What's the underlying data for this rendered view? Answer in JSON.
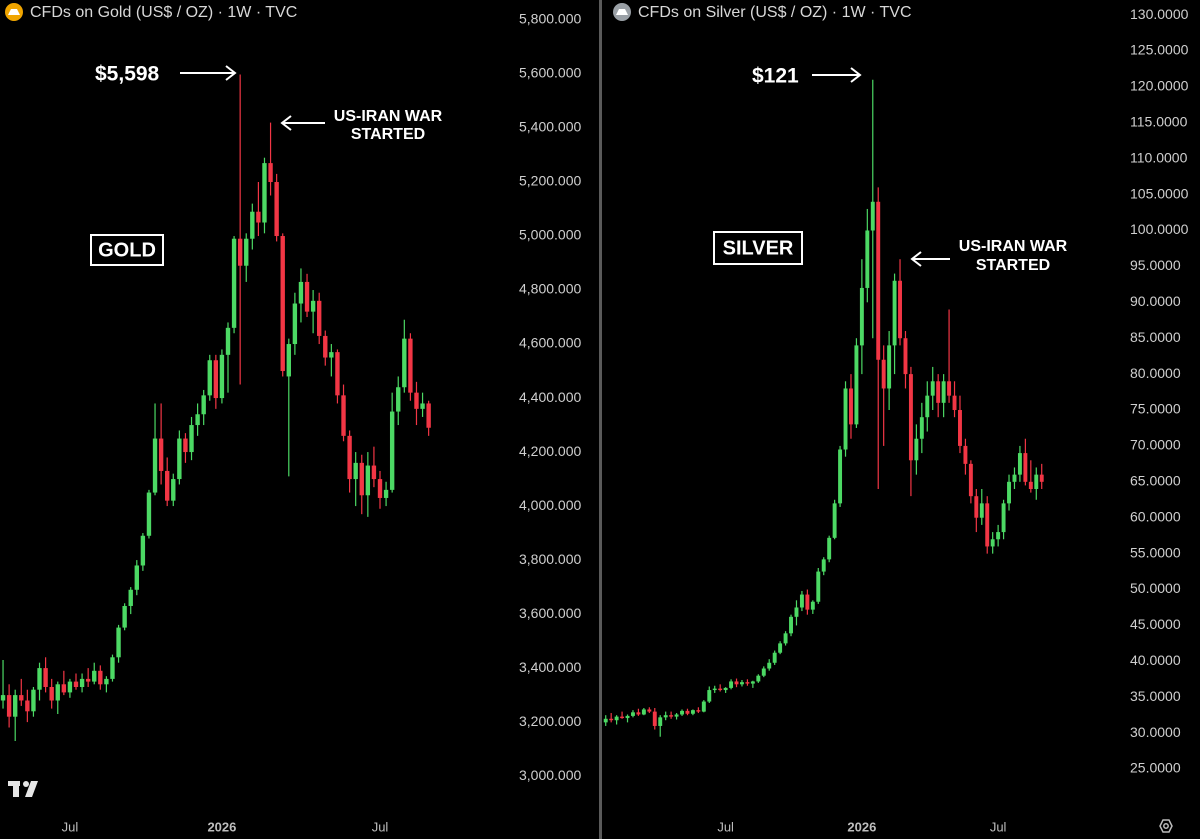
{
  "chart_data": [
    {
      "type": "candlestick",
      "title": "CFDs on Gold (US$ / OZ) · 1W · TVC",
      "label": "GOLD",
      "annotations": [
        {
          "text": "$5,598"
        },
        {
          "lines": [
            "US-IRAN WAR",
            "STARTED"
          ]
        }
      ],
      "up_color": "#4cd964",
      "down_color": "#f23645",
      "ylim": [
        2856,
        5874
      ],
      "yticks": [
        {
          "value": 3000,
          "label": "3,000.000"
        },
        {
          "value": 3200,
          "label": "3,200.000"
        },
        {
          "value": 3400,
          "label": "3,400.000"
        },
        {
          "value": 3600,
          "label": "3,600.000"
        },
        {
          "value": 3800,
          "label": "3,800.000"
        },
        {
          "value": 4000,
          "label": "4,000.000"
        },
        {
          "value": 4200,
          "label": "4,200.000"
        },
        {
          "value": 4400,
          "label": "4,400.000"
        },
        {
          "value": 4600,
          "label": "4,600.000"
        },
        {
          "value": 4800,
          "label": "4,800.000"
        },
        {
          "value": 5000,
          "label": "5,000.000"
        },
        {
          "value": 5200,
          "label": "5,200.000"
        },
        {
          "value": 5400,
          "label": "5,400.000"
        },
        {
          "value": 5600,
          "label": "5,600.000"
        },
        {
          "value": 5800,
          "label": "5,800.000"
        }
      ],
      "categories": [
        null,
        null,
        null,
        null,
        null,
        null,
        null,
        null,
        null,
        null,
        null,
        "Jul",
        null,
        null,
        null,
        null,
        null,
        null,
        null,
        null,
        null,
        null,
        null,
        null,
        null,
        null,
        null,
        null,
        null,
        null,
        null,
        null,
        null,
        null,
        null,
        null,
        "2026",
        null,
        null,
        null,
        null,
        null,
        null,
        null,
        null,
        null,
        null,
        null,
        null,
        null,
        null,
        null,
        null,
        null,
        null,
        null,
        null,
        null,
        null,
        null,
        null,
        null,
        "Jul",
        null,
        null,
        null,
        null,
        null,
        null,
        null,
        null
      ],
      "candles": [
        [
          3280,
          3430,
          3250,
          3300
        ],
        [
          3300,
          3340,
          3180,
          3220
        ],
        [
          3220,
          3320,
          3130,
          3300
        ],
        [
          3300,
          3360,
          3260,
          3280
        ],
        [
          3280,
          3320,
          3200,
          3240
        ],
        [
          3240,
          3330,
          3220,
          3320
        ],
        [
          3320,
          3420,
          3280,
          3400
        ],
        [
          3400,
          3440,
          3310,
          3330
        ],
        [
          3330,
          3360,
          3250,
          3280
        ],
        [
          3280,
          3350,
          3230,
          3340
        ],
        [
          3340,
          3390,
          3300,
          3310
        ],
        [
          3310,
          3360,
          3290,
          3350
        ],
        [
          3350,
          3380,
          3320,
          3330
        ],
        [
          3330,
          3380,
          3310,
          3360
        ],
        [
          3360,
          3400,
          3330,
          3350
        ],
        [
          3350,
          3420,
          3340,
          3390
        ],
        [
          3390,
          3410,
          3320,
          3340
        ],
        [
          3340,
          3370,
          3310,
          3360
        ],
        [
          3360,
          3450,
          3350,
          3440
        ],
        [
          3440,
          3560,
          3420,
          3550
        ],
        [
          3550,
          3640,
          3540,
          3630
        ],
        [
          3630,
          3700,
          3600,
          3690
        ],
        [
          3690,
          3800,
          3670,
          3780
        ],
        [
          3780,
          3900,
          3760,
          3890
        ],
        [
          3890,
          4060,
          3880,
          4050
        ],
        [
          4050,
          4380,
          4040,
          4250
        ],
        [
          4250,
          4380,
          4080,
          4130
        ],
        [
          4130,
          4180,
          4000,
          4020
        ],
        [
          4020,
          4120,
          4000,
          4100
        ],
        [
          4100,
          4280,
          4080,
          4250
        ],
        [
          4250,
          4270,
          4160,
          4200
        ],
        [
          4200,
          4330,
          4170,
          4300
        ],
        [
          4300,
          4380,
          4260,
          4340
        ],
        [
          4340,
          4430,
          4300,
          4410
        ],
        [
          4410,
          4560,
          4390,
          4540
        ],
        [
          4540,
          4560,
          4360,
          4400
        ],
        [
          4400,
          4580,
          4380,
          4560
        ],
        [
          4560,
          4680,
          4420,
          4660
        ],
        [
          4660,
          5000,
          4640,
          4990
        ],
        [
          4990,
          5598,
          4450,
          4890
        ],
        [
          4890,
          5010,
          4830,
          4990
        ],
        [
          4990,
          5120,
          4950,
          5090
        ],
        [
          5090,
          5200,
          5000,
          5050
        ],
        [
          5050,
          5290,
          5010,
          5270
        ],
        [
          5270,
          5420,
          5150,
          5200
        ],
        [
          5200,
          5230,
          4980,
          5000
        ],
        [
          5000,
          5010,
          4480,
          4500
        ],
        [
          4480,
          4620,
          4110,
          4600
        ],
        [
          4600,
          4790,
          4560,
          4750
        ],
        [
          4750,
          4880,
          4680,
          4830
        ],
        [
          4830,
          4860,
          4700,
          4720
        ],
        [
          4720,
          4800,
          4640,
          4760
        ],
        [
          4760,
          4790,
          4600,
          4630
        ],
        [
          4630,
          4650,
          4520,
          4550
        ],
        [
          4550,
          4600,
          4480,
          4570
        ],
        [
          4570,
          4580,
          4380,
          4410
        ],
        [
          4410,
          4450,
          4240,
          4260
        ],
        [
          4260,
          4280,
          4050,
          4100
        ],
        [
          4100,
          4200,
          4000,
          4160
        ],
        [
          4160,
          4190,
          3970,
          4040
        ],
        [
          4040,
          4200,
          3960,
          4150
        ],
        [
          4150,
          4220,
          4070,
          4100
        ],
        [
          4100,
          4130,
          3990,
          4030
        ],
        [
          4030,
          4090,
          4000,
          4060
        ],
        [
          4060,
          4420,
          4050,
          4350
        ],
        [
          4350,
          4480,
          4300,
          4440
        ],
        [
          4440,
          4690,
          4420,
          4620
        ],
        [
          4620,
          4640,
          4390,
          4420
        ],
        [
          4420,
          4460,
          4300,
          4360
        ],
        [
          4360,
          4420,
          4330,
          4380
        ],
        [
          4380,
          4390,
          4260,
          4290
        ]
      ]
    },
    {
      "type": "candlestick",
      "title": "CFDs on Silver (US$ / OZ) · 1W · TVC",
      "label": "SILVER",
      "annotations": [
        {
          "text": "$121"
        },
        {
          "lines": [
            "US-IRAN WAR",
            "STARTED"
          ]
        }
      ],
      "up_color": "#4cd964",
      "down_color": "#f23645",
      "ylim": [
        18.6,
        132.1
      ],
      "yticks": [
        {
          "value": 25,
          "label": "25.0000"
        },
        {
          "value": 30,
          "label": "30.0000"
        },
        {
          "value": 35,
          "label": "35.0000"
        },
        {
          "value": 40,
          "label": "40.0000"
        },
        {
          "value": 45,
          "label": "45.0000"
        },
        {
          "value": 50,
          "label": "50.0000"
        },
        {
          "value": 55,
          "label": "55.0000"
        },
        {
          "value": 60,
          "label": "60.0000"
        },
        {
          "value": 65,
          "label": "65.0000"
        },
        {
          "value": 70,
          "label": "70.0000"
        },
        {
          "value": 75,
          "label": "75.0000"
        },
        {
          "value": 80,
          "label": "80.0000"
        },
        {
          "value": 85,
          "label": "85.0000"
        },
        {
          "value": 90,
          "label": "90.0000"
        },
        {
          "value": 95,
          "label": "95.0000"
        },
        {
          "value": 100,
          "label": "100.0000"
        },
        {
          "value": 105,
          "label": "105.0000"
        },
        {
          "value": 110,
          "label": "110.0000"
        },
        {
          "value": 115,
          "label": "115.0000"
        },
        {
          "value": 120,
          "label": "120.0000"
        },
        {
          "value": 125,
          "label": "125.0000"
        },
        {
          "value": 130,
          "label": "130.0000"
        }
      ],
      "categories": [
        null,
        null,
        null,
        null,
        null,
        null,
        null,
        null,
        null,
        null,
        null,
        null,
        null,
        null,
        null,
        null,
        null,
        null,
        null,
        null,
        null,
        null,
        "Jul",
        null,
        null,
        null,
        null,
        null,
        null,
        null,
        null,
        null,
        null,
        null,
        null,
        null,
        null,
        null,
        null,
        null,
        null,
        null,
        null,
        null,
        null,
        null,
        null,
        "2026",
        null,
        null,
        null,
        null,
        null,
        null,
        null,
        null,
        null,
        null,
        null,
        null,
        null,
        null,
        null,
        null,
        null,
        null,
        null,
        null,
        null,
        null,
        null,
        null,
        "Jul",
        null,
        null,
        null,
        null,
        null,
        null,
        null,
        null
      ],
      "candles": [
        [
          31.5,
          32.5,
          31,
          32
        ],
        [
          32,
          32.8,
          31.5,
          31.8
        ],
        [
          31.8,
          32.5,
          31.2,
          32.3
        ],
        [
          32.3,
          33,
          32,
          32.1
        ],
        [
          32.1,
          32.6,
          31.5,
          32.4
        ],
        [
          32.4,
          33.2,
          32.2,
          32.9
        ],
        [
          32.9,
          33.4,
          32.4,
          32.6
        ],
        [
          32.6,
          33.5,
          32.5,
          33.3
        ],
        [
          33.3,
          33.6,
          32.8,
          33
        ],
        [
          33,
          33.5,
          30.5,
          31
        ],
        [
          31,
          32.5,
          29.5,
          32.2
        ],
        [
          32.2,
          33,
          31.8,
          32.5
        ],
        [
          32.5,
          33,
          32,
          32.3
        ],
        [
          32.3,
          32.8,
          31.9,
          32.6
        ],
        [
          32.6,
          33.3,
          32.4,
          33.1
        ],
        [
          33.1,
          33.4,
          32.5,
          32.7
        ],
        [
          32.7,
          33.3,
          32.5,
          33.2
        ],
        [
          33.2,
          33.6,
          32.8,
          33
        ],
        [
          33,
          34.6,
          32.9,
          34.4
        ],
        [
          34.4,
          36.5,
          34.2,
          36
        ],
        [
          36,
          36.6,
          35.6,
          36.2
        ],
        [
          36.2,
          36.8,
          35.8,
          36
        ],
        [
          36,
          36.4,
          35.6,
          36.3
        ],
        [
          36.3,
          37.5,
          36.1,
          37.2
        ],
        [
          37.2,
          37.6,
          36.4,
          36.8
        ],
        [
          36.8,
          37.4,
          36.5,
          37.1
        ],
        [
          37.1,
          37.5,
          36.6,
          36.9
        ],
        [
          36.9,
          37.3,
          36.3,
          37.2
        ],
        [
          37.2,
          38.2,
          37,
          38
        ],
        [
          38,
          39.3,
          37.8,
          39
        ],
        [
          39,
          40.3,
          38.7,
          39.8
        ],
        [
          39.8,
          41.5,
          39.5,
          41.2
        ],
        [
          41.2,
          42.8,
          41,
          42.5
        ],
        [
          42.5,
          44.2,
          42.2,
          43.9
        ],
        [
          43.9,
          46.5,
          43.5,
          46.2
        ],
        [
          46.2,
          48.5,
          45,
          47.5
        ],
        [
          47.5,
          49.8,
          47,
          49.3
        ],
        [
          49.3,
          50,
          46.5,
          47.2
        ],
        [
          47.2,
          48.5,
          46.6,
          48.3
        ],
        [
          48.3,
          53,
          48,
          52.5
        ],
        [
          52.5,
          54.5,
          52,
          54.2
        ],
        [
          54.2,
          57.5,
          53.8,
          57.2
        ],
        [
          57.2,
          62.5,
          57,
          62
        ],
        [
          62,
          70,
          61.5,
          69.5
        ],
        [
          69.5,
          79,
          68.5,
          78
        ],
        [
          78,
          80,
          71,
          73
        ],
        [
          73,
          85,
          72.5,
          84
        ],
        [
          84,
          96,
          80,
          92
        ],
        [
          92,
          103,
          90,
          100
        ],
        [
          100,
          121,
          85,
          104
        ],
        [
          104,
          106,
          64,
          82
        ],
        [
          82,
          84,
          70,
          78
        ],
        [
          78,
          86,
          75,
          84
        ],
        [
          84,
          94,
          80,
          93
        ],
        [
          93,
          96,
          84,
          85
        ],
        [
          85,
          86,
          78,
          80
        ],
        [
          80,
          81,
          63,
          68
        ],
        [
          68,
          73,
          66,
          71
        ],
        [
          71,
          76,
          69,
          74
        ],
        [
          74,
          79,
          72,
          77
        ],
        [
          77,
          81,
          75,
          79
        ],
        [
          79,
          80,
          74,
          76
        ],
        [
          76,
          80,
          74,
          79
        ],
        [
          79,
          89,
          76,
          77
        ],
        [
          77,
          79,
          74,
          75
        ],
        [
          75,
          77,
          69,
          70
        ],
        [
          70,
          71,
          66,
          67.5
        ],
        [
          67.5,
          68,
          62,
          63
        ],
        [
          63,
          64,
          58,
          60
        ],
        [
          60,
          64,
          59,
          62
        ],
        [
          62,
          63,
          55,
          56
        ],
        [
          56,
          58,
          55,
          57
        ],
        [
          57,
          59,
          56,
          58
        ],
        [
          58,
          62.5,
          57,
          62
        ],
        [
          62,
          66,
          61,
          65
        ],
        [
          65,
          67,
          64,
          66
        ],
        [
          66,
          70,
          65,
          69
        ],
        [
          69,
          71,
          64.5,
          65
        ],
        [
          65,
          68,
          63.5,
          64
        ],
        [
          64,
          67,
          62.5,
          66
        ],
        [
          66,
          67.5,
          64,
          65
        ]
      ]
    }
  ]
}
